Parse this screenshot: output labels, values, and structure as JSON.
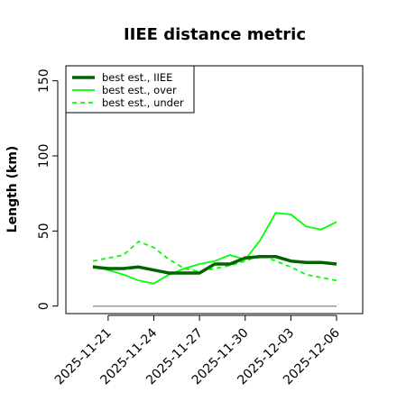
{
  "chart_data": {
    "type": "line",
    "title": "IIEE distance metric",
    "xlabel": "",
    "ylabel": "Length (km)",
    "ylim": [
      -5,
      160
    ],
    "yticks": [
      0,
      50,
      100,
      150
    ],
    "x": [
      "2025-11-20",
      "2025-11-21",
      "2025-11-22",
      "2025-11-23",
      "2025-11-24",
      "2025-11-25",
      "2025-11-26",
      "2025-11-27",
      "2025-11-28",
      "2025-11-29",
      "2025-11-30",
      "2025-12-01",
      "2025-12-02",
      "2025-12-03",
      "2025-12-04",
      "2025-12-05",
      "2025-12-06"
    ],
    "xtick_labels": [
      "2025-11-21",
      "2025-11-24",
      "2025-11-27",
      "2025-11-30",
      "2025-12-03",
      "2025-12-06"
    ],
    "series": [
      {
        "name": "best est., IIEE",
        "color": "#006400",
        "style": "solid",
        "values": [
          26,
          25,
          25,
          26,
          24,
          22,
          22,
          22,
          28,
          28,
          32,
          33,
          33,
          30,
          29,
          29,
          28
        ]
      },
      {
        "name": "best est., over",
        "color": "#00ff00",
        "style": "solid",
        "values": [
          27,
          24,
          21,
          17,
          15,
          21,
          25,
          28,
          30,
          34,
          31,
          44,
          62,
          61,
          53,
          51,
          56
        ]
      },
      {
        "name": "best est., under",
        "color": "#00ff00",
        "style": "dashed",
        "values": [
          30,
          32,
          34,
          43,
          39,
          31,
          25,
          23,
          25,
          27,
          30,
          34,
          30,
          26,
          21,
          19,
          17
        ]
      },
      {
        "name": "",
        "color": "#999999",
        "style": "solid",
        "values": [
          0,
          0,
          0,
          0,
          0,
          0,
          0,
          0,
          0,
          0,
          0,
          0,
          0,
          0,
          0,
          0,
          0
        ]
      }
    ],
    "grid": false,
    "legend_position": "top-left"
  }
}
